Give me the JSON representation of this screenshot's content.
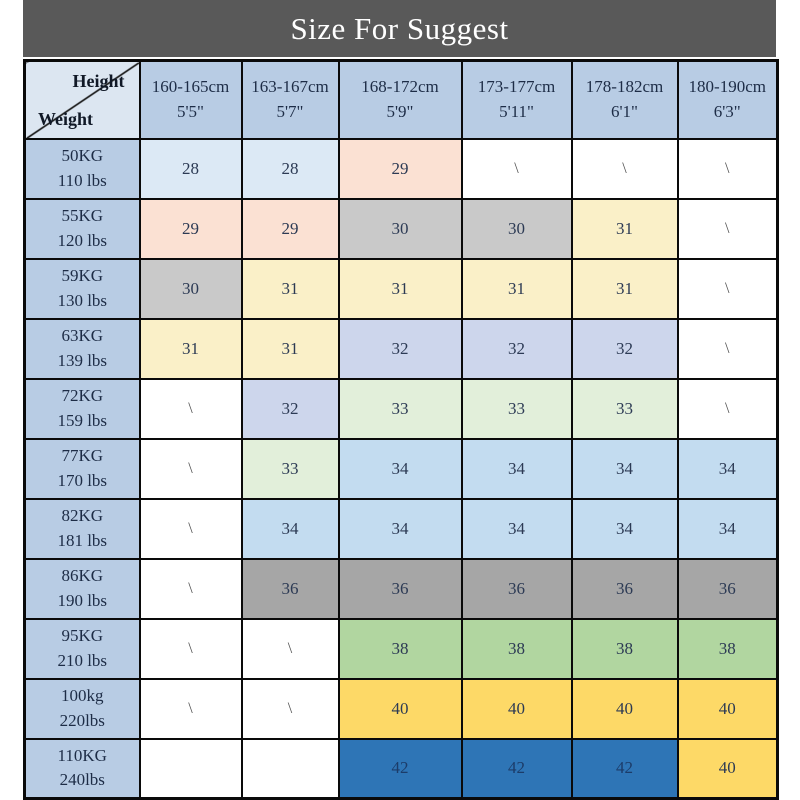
{
  "title_bar": {
    "text": "Size For Suggest"
  },
  "colors": {
    "title_bg": "#595959",
    "title_text": "#ffffff",
    "header_bg": "#b8cce4",
    "corner_bg": "#dce6f1",
    "border": "#0a0a0a",
    "white": "#ffffff",
    "blue28": "#dce9f5",
    "peach29": "#fbe1d3",
    "gray30": "#c9c9c9",
    "yellow31": "#faf0c8",
    "lavender32": "#cdd6ec",
    "green33": "#e2efda",
    "blue34": "#c3dcf0",
    "gray36": "#a6a6a6",
    "green38": "#b1d6a0",
    "gold40": "#fdd967",
    "blue42": "#2e75b6"
  },
  "chart_data": {
    "type": "table",
    "title": "Size For Suggest",
    "corner": {
      "top_label": "Height",
      "bottom_label": "Weight"
    },
    "columns": [
      {
        "cm": "160-165cm",
        "ft": "5'5\""
      },
      {
        "cm": "163-167cm",
        "ft": "5'7\""
      },
      {
        "cm": "168-172cm",
        "ft": "5'9\""
      },
      {
        "cm": "173-177cm",
        "ft": "5'11\""
      },
      {
        "cm": "178-182cm",
        "ft": "6'1\""
      },
      {
        "cm": "180-190cm",
        "ft": "6'3\""
      }
    ],
    "rows": [
      {
        "kg": "50KG",
        "lbs": "110 lbs",
        "cells": [
          {
            "v": "28",
            "c": "blue28"
          },
          {
            "v": "28",
            "c": "blue28"
          },
          {
            "v": "29",
            "c": "peach29"
          },
          {
            "v": "\\",
            "c": "white"
          },
          {
            "v": "\\",
            "c": "white"
          },
          {
            "v": "\\",
            "c": "white"
          }
        ]
      },
      {
        "kg": "55KG",
        "lbs": "120 lbs",
        "cells": [
          {
            "v": "29",
            "c": "peach29"
          },
          {
            "v": "29",
            "c": "peach29"
          },
          {
            "v": "30",
            "c": "gray30"
          },
          {
            "v": "30",
            "c": "gray30"
          },
          {
            "v": "31",
            "c": "yellow31"
          },
          {
            "v": "\\",
            "c": "white"
          }
        ]
      },
      {
        "kg": "59KG",
        "lbs": "130 lbs",
        "cells": [
          {
            "v": "30",
            "c": "gray30"
          },
          {
            "v": "31",
            "c": "yellow31"
          },
          {
            "v": "31",
            "c": "yellow31"
          },
          {
            "v": "31",
            "c": "yellow31"
          },
          {
            "v": "31",
            "c": "yellow31"
          },
          {
            "v": "\\",
            "c": "white"
          }
        ]
      },
      {
        "kg": "63KG",
        "lbs": "139 lbs",
        "cells": [
          {
            "v": "31",
            "c": "yellow31"
          },
          {
            "v": "31",
            "c": "yellow31"
          },
          {
            "v": "32",
            "c": "lavender32"
          },
          {
            "v": "32",
            "c": "lavender32"
          },
          {
            "v": "32",
            "c": "lavender32"
          },
          {
            "v": "\\",
            "c": "white"
          }
        ]
      },
      {
        "kg": "72KG",
        "lbs": "159 lbs",
        "cells": [
          {
            "v": "\\",
            "c": "white"
          },
          {
            "v": "32",
            "c": "lavender32"
          },
          {
            "v": "33",
            "c": "green33"
          },
          {
            "v": "33",
            "c": "green33"
          },
          {
            "v": "33",
            "c": "green33"
          },
          {
            "v": "\\",
            "c": "white"
          }
        ]
      },
      {
        "kg": "77KG",
        "lbs": "170 lbs",
        "cells": [
          {
            "v": "\\",
            "c": "white"
          },
          {
            "v": "33",
            "c": "green33"
          },
          {
            "v": "34",
            "c": "blue34"
          },
          {
            "v": "34",
            "c": "blue34"
          },
          {
            "v": "34",
            "c": "blue34"
          },
          {
            "v": "34",
            "c": "blue34"
          }
        ]
      },
      {
        "kg": "82KG",
        "lbs": "181 lbs",
        "cells": [
          {
            "v": "\\",
            "c": "white"
          },
          {
            "v": "34",
            "c": "blue34"
          },
          {
            "v": "34",
            "c": "blue34"
          },
          {
            "v": "34",
            "c": "blue34"
          },
          {
            "v": "34",
            "c": "blue34"
          },
          {
            "v": "34",
            "c": "blue34"
          }
        ]
      },
      {
        "kg": "86KG",
        "lbs": "190 lbs",
        "cells": [
          {
            "v": "\\",
            "c": "white"
          },
          {
            "v": "36",
            "c": "gray36"
          },
          {
            "v": "36",
            "c": "gray36"
          },
          {
            "v": "36",
            "c": "gray36"
          },
          {
            "v": "36",
            "c": "gray36"
          },
          {
            "v": "36",
            "c": "gray36"
          }
        ]
      },
      {
        "kg": "95KG",
        "lbs": "210 lbs",
        "cells": [
          {
            "v": "\\",
            "c": "white"
          },
          {
            "v": "\\",
            "c": "white"
          },
          {
            "v": "38",
            "c": "green38"
          },
          {
            "v": "38",
            "c": "green38"
          },
          {
            "v": "38",
            "c": "green38"
          },
          {
            "v": "38",
            "c": "green38"
          }
        ]
      },
      {
        "kg": "100kg",
        "lbs": "220lbs",
        "cells": [
          {
            "v": "\\",
            "c": "white"
          },
          {
            "v": "\\",
            "c": "white"
          },
          {
            "v": "40",
            "c": "gold40"
          },
          {
            "v": "40",
            "c": "gold40"
          },
          {
            "v": "40",
            "c": "gold40"
          },
          {
            "v": "40",
            "c": "gold40"
          }
        ]
      },
      {
        "kg": "110KG",
        "lbs": "240lbs",
        "cells": [
          {
            "v": "",
            "c": "white"
          },
          {
            "v": "",
            "c": "white"
          },
          {
            "v": "42",
            "c": "blue42"
          },
          {
            "v": "42",
            "c": "blue42"
          },
          {
            "v": "42",
            "c": "blue42"
          },
          {
            "v": "40",
            "c": "gold40"
          }
        ]
      }
    ]
  }
}
